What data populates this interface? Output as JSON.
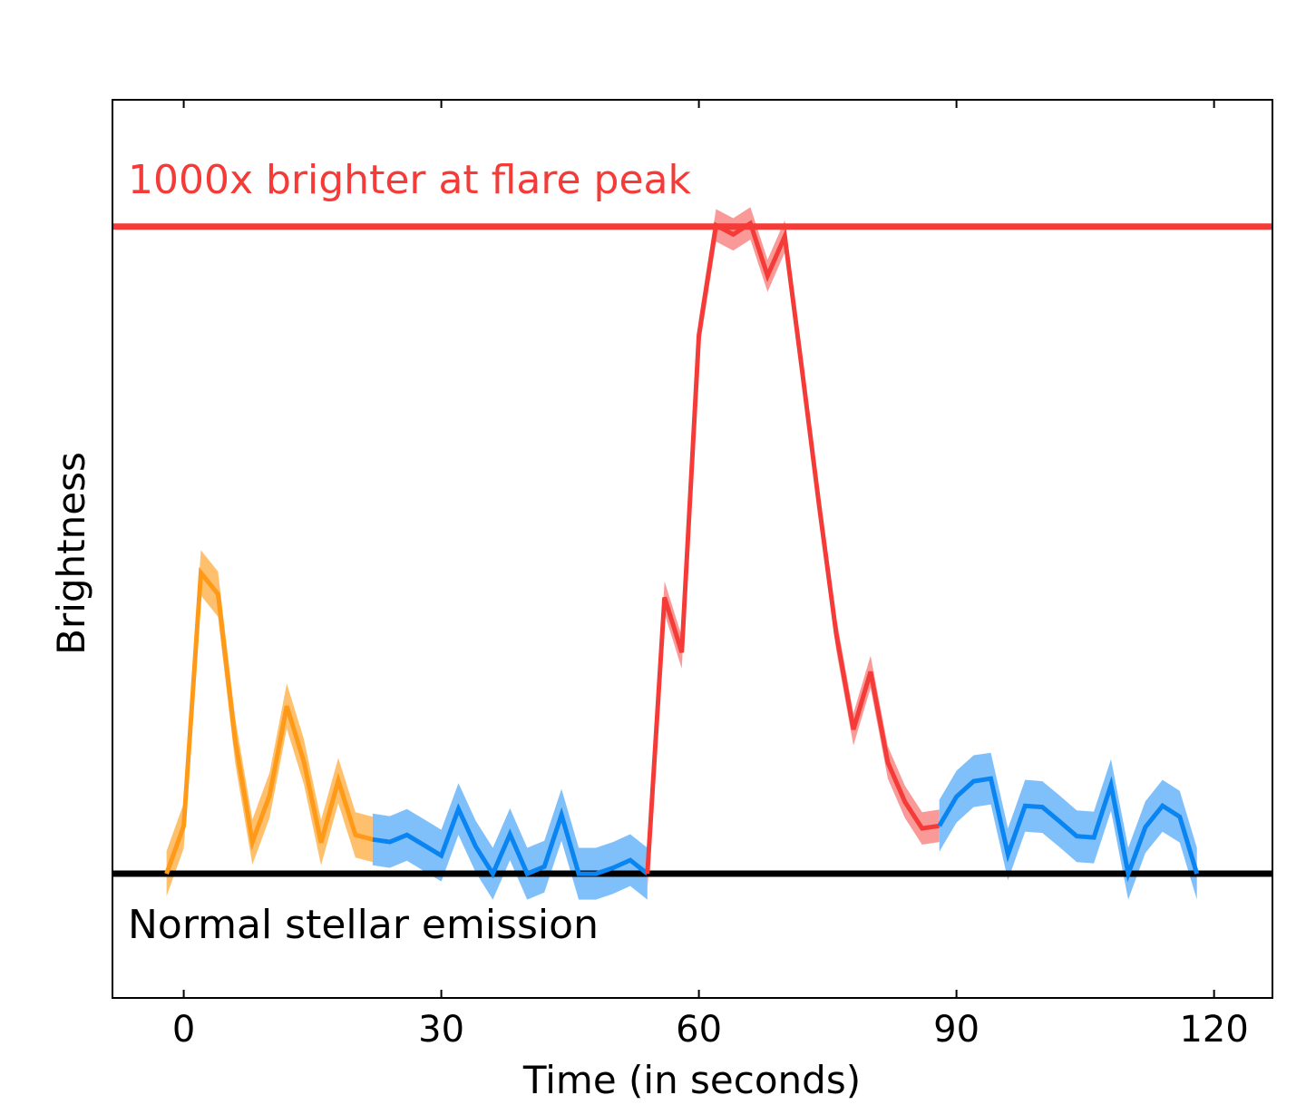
{
  "chart_data": {
    "type": "line",
    "title": "",
    "xlabel": "Time (in seconds)",
    "ylabel": "Brightness",
    "xlim": [
      -8.3,
      126.8
    ],
    "ylim": [
      -0.192,
      1.196
    ],
    "xticks": [
      0,
      30,
      60,
      90,
      120
    ],
    "xtick_labels": [
      "0",
      "30",
      "60",
      "90",
      "120"
    ],
    "yticks": [],
    "grid": false,
    "reference_lines": [
      {
        "label": "1000x brighter at flare peak",
        "y": 1.0,
        "color": "#f43b37"
      },
      {
        "label": "Normal stellar emission",
        "y": 0.0,
        "color": "#000000"
      }
    ],
    "series": [
      {
        "color": "#ff9a18",
        "band_color": "#ffc06e",
        "band": 0.035,
        "x": [
          -2,
          0,
          2,
          4,
          6,
          8,
          10,
          12,
          14,
          16,
          18,
          20,
          22
        ],
        "y": [
          0.0,
          0.074,
          0.465,
          0.432,
          0.205,
          0.049,
          0.121,
          0.259,
          0.173,
          0.048,
          0.144,
          0.06,
          0.053
        ]
      },
      {
        "color": "#0a84f0",
        "band_color": "#80c0fa",
        "band": 0.04,
        "x": [
          22,
          24,
          26,
          28,
          30,
          32,
          34,
          36,
          38,
          40,
          42,
          44,
          46,
          48,
          50,
          52,
          54
        ],
        "y": [
          0.053,
          0.049,
          0.06,
          0.044,
          0.028,
          0.1,
          0.042,
          0.0,
          0.061,
          0.0,
          0.011,
          0.091,
          0.0,
          0.0,
          0.009,
          0.021,
          0.0
        ]
      },
      {
        "color": "#f43b37",
        "band_color": "#f99a98",
        "band": 0.025,
        "x": [
          54,
          56,
          58,
          60,
          62,
          64,
          66,
          68,
          70,
          72,
          74,
          76,
          78,
          80,
          82,
          84,
          86,
          88
        ],
        "y": [
          0.0,
          0.427,
          0.342,
          0.832,
          1.002,
          0.988,
          1.005,
          0.924,
          0.985,
          0.78,
          0.57,
          0.37,
          0.223,
          0.312,
          0.172,
          0.111,
          0.07,
          0.074
        ]
      },
      {
        "color": "#0a84f0",
        "band_color": "#80c0fa",
        "band": 0.04,
        "x": [
          88,
          90,
          92,
          94,
          96,
          98,
          100,
          102,
          104,
          106,
          108,
          110,
          112,
          114,
          116,
          118
        ],
        "y": [
          0.074,
          0.119,
          0.143,
          0.147,
          0.03,
          0.105,
          0.103,
          0.081,
          0.058,
          0.056,
          0.137,
          0.0,
          0.072,
          0.105,
          0.088,
          0.0
        ]
      }
    ]
  }
}
